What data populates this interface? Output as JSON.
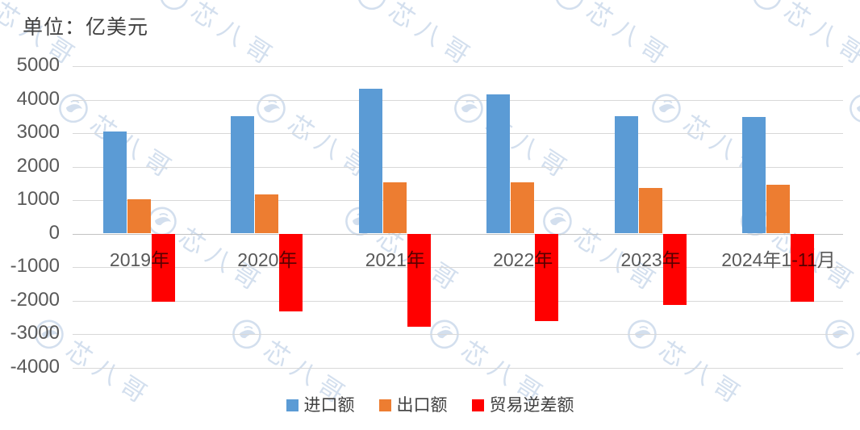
{
  "header": {
    "unit_label": "单位：亿美元"
  },
  "watermark": {
    "brand": "芯八哥"
  },
  "colors": {
    "grid": "#d8d8d8",
    "zero_line": "#c2c2c2",
    "axis_text": "#595959",
    "title_text": "#404040",
    "watermark": "#a8bfde"
  },
  "chart_data": {
    "type": "bar",
    "title": "",
    "unit_label": "单位：亿美元",
    "ylabel": "亿美元",
    "xlabel": "",
    "categories": [
      "2019年",
      "2020年",
      "2021年",
      "2022年",
      "2023年",
      "2024年1-11月"
    ],
    "series": [
      {
        "key": "imports",
        "name": "进口额",
        "color": "#5B9BD5",
        "values": [
          3055.5,
          3500.4,
          4325.5,
          4156.8,
          3494.3,
          3482.2
        ]
      },
      {
        "key": "exports",
        "name": "出口额",
        "color": "#ED7D31",
        "values": [
          1015.8,
          1166.0,
          1537.9,
          1539.2,
          1355.2,
          1447.5
        ]
      },
      {
        "key": "trade-deficit",
        "name": "贸易逆差额",
        "color": "#FF0000",
        "values": [
          -2039.7,
          -2334.4,
          -2787.6,
          -2617.6,
          -2139.1,
          -2034.7
        ]
      }
    ],
    "ylim": [
      -4000,
      5000
    ],
    "ytick_step": 1000,
    "yticks": [
      5000,
      4000,
      3000,
      2000,
      1000,
      0,
      -1000,
      -2000,
      -3000,
      -4000
    ],
    "grid": true,
    "legend_position": "bottom"
  }
}
